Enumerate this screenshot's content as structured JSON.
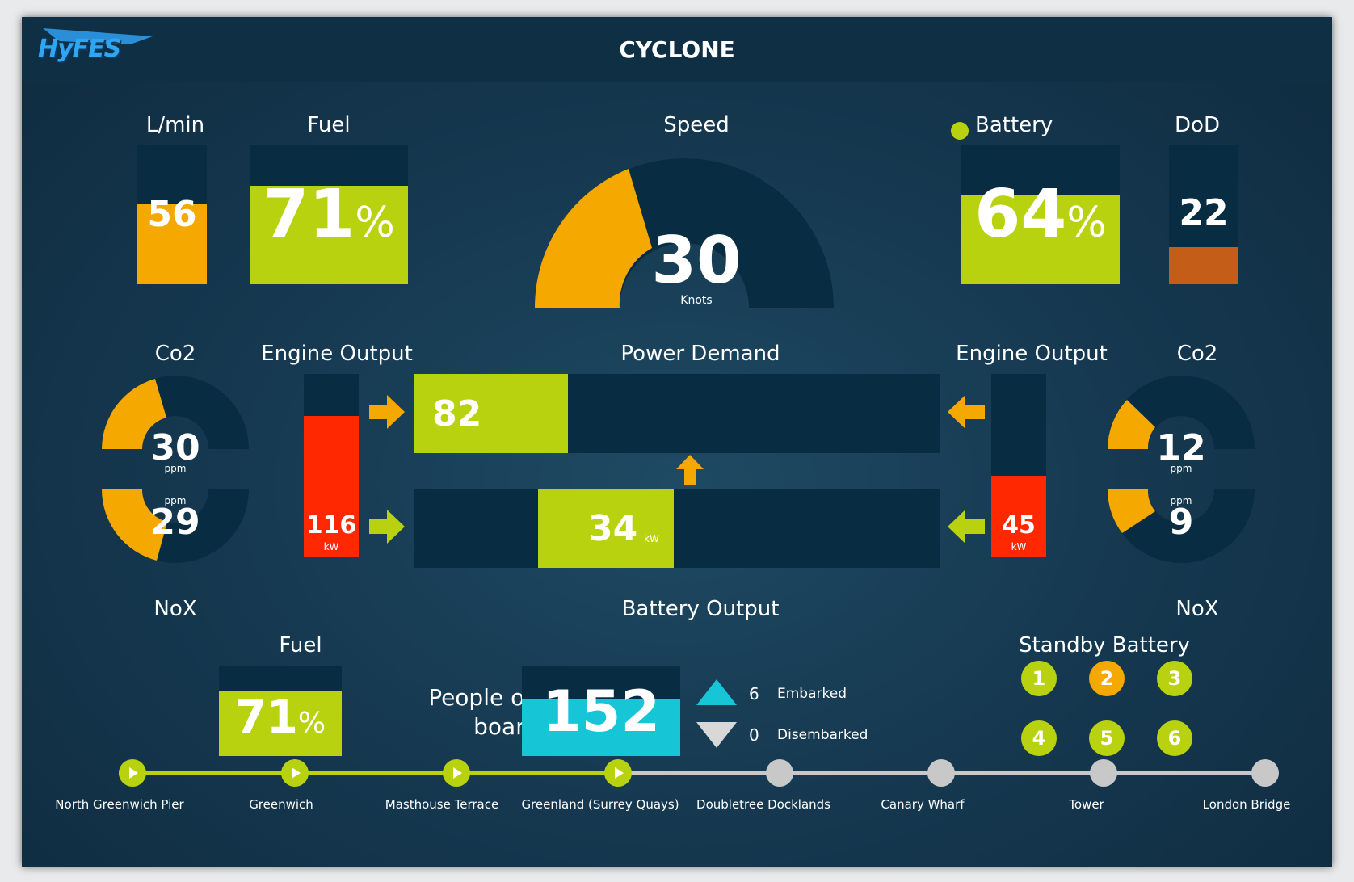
{
  "header": {
    "logo": "HyFES",
    "title": "CYCLONE"
  },
  "flow": {
    "label": "L/min",
    "value": "56",
    "level": 0.56
  },
  "fuel_top": {
    "label": "Fuel",
    "value": "71",
    "unit": "%",
    "level": 0.71
  },
  "speed": {
    "label": "Speed",
    "value": "30",
    "unit": "Knots"
  },
  "battery": {
    "label": "Battery",
    "value": "64",
    "unit": "%",
    "level": 0.64
  },
  "dod": {
    "label": "DoD",
    "value": "22",
    "level": 0.22
  },
  "left_emissions": {
    "co2_label": "Co2",
    "co2_value": "30",
    "co2_unit": "ppm",
    "nox_label": "NoX",
    "nox_value": "29",
    "nox_unit": "ppm"
  },
  "right_emissions": {
    "co2_label": "Co2",
    "co2_value": "12",
    "co2_unit": "ppm",
    "nox_label": "NoX",
    "nox_value": "9",
    "nox_unit": "ppm"
  },
  "engine_left": {
    "label": "Engine Output",
    "value": "116",
    "unit": "kW"
  },
  "engine_right": {
    "label": "Engine Output",
    "value": "45",
    "unit": "kW"
  },
  "power_demand": {
    "label": "Power Demand",
    "value": "82"
  },
  "battery_output": {
    "label": "Battery Output",
    "value": "34",
    "unit": "kW"
  },
  "fuel_bottom": {
    "label": "Fuel",
    "value": "71",
    "unit": "%",
    "level": 0.71
  },
  "people": {
    "label_line1": "People on",
    "label_line2": "board",
    "value": "152",
    "embarked_count": "6",
    "embarked_label": "Embarked",
    "disembarked_count": "0",
    "disembarked_label": "Disembarked"
  },
  "standby": {
    "label": "Standby Battery",
    "batteries": [
      "1",
      "2",
      "3",
      "4",
      "5",
      "6"
    ]
  },
  "route": {
    "stops": [
      "North Greenwich Pier",
      "Greenwich",
      "Masthouse Terrace",
      "Greenland (Surrey Quays)",
      "Doubletree Docklands",
      "Canary Wharf",
      "Tower",
      "London Bridge"
    ],
    "visited_count": 4
  },
  "colors": {
    "green": "#b9d20f",
    "orange": "#f5a800",
    "red": "#ff2800",
    "cyan": "#17c6d6",
    "dark": "#082c42",
    "grey": "#c8c8c8"
  }
}
